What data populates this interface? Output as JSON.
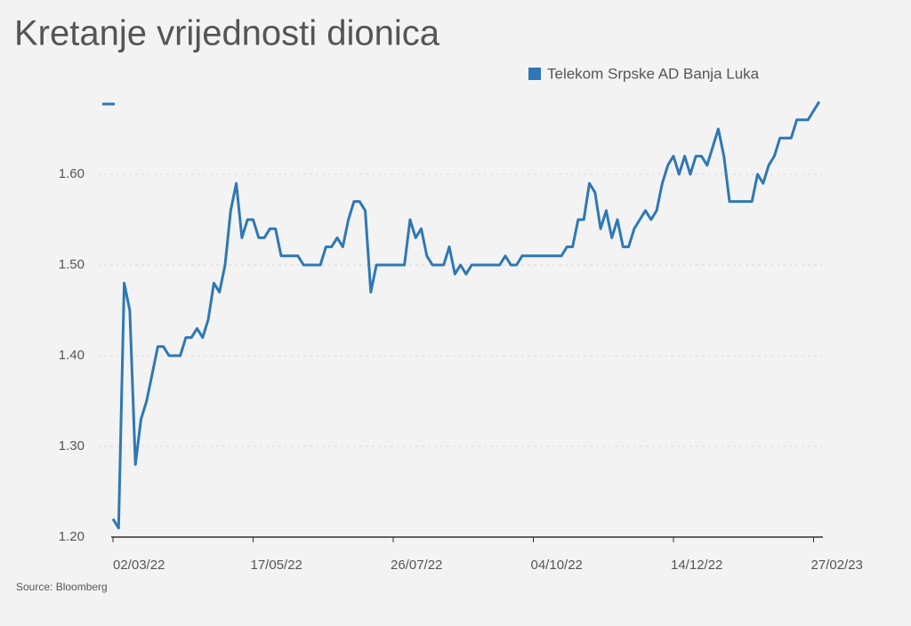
{
  "chart_data": {
    "type": "line",
    "title": "Kretanje vrijednosti dionica",
    "source": "Source: Bloomberg",
    "categories": [
      "02/03/22",
      null,
      null,
      null,
      null,
      null,
      null,
      null,
      null,
      null,
      null,
      null,
      null,
      null,
      null,
      null,
      null,
      null,
      null,
      null,
      null,
      null,
      null,
      null,
      null,
      "17/05/22",
      null,
      null,
      null,
      null,
      null,
      null,
      null,
      null,
      null,
      null,
      null,
      null,
      null,
      null,
      null,
      null,
      null,
      null,
      null,
      null,
      null,
      null,
      null,
      null,
      "26/07/22",
      null,
      null,
      null,
      null,
      null,
      null,
      null,
      null,
      null,
      null,
      null,
      null,
      null,
      null,
      null,
      null,
      null,
      null,
      null,
      null,
      null,
      null,
      null,
      null,
      "04/10/22",
      null,
      null,
      null,
      null,
      null,
      null,
      null,
      null,
      null,
      null,
      null,
      null,
      null,
      null,
      null,
      null,
      null,
      null,
      null,
      null,
      null,
      null,
      null,
      null,
      "14/12/22",
      null,
      null,
      null,
      null,
      null,
      null,
      null,
      null,
      null,
      null,
      null,
      null,
      null,
      null,
      null,
      null,
      null,
      null,
      null,
      null,
      null,
      null,
      null,
      null,
      "27/02/23",
      null
    ],
    "series": [
      {
        "name": "Telekom Srpske AD Banja Luka",
        "color": "#2e78b5",
        "values": [
          1.22,
          1.21,
          1.48,
          1.45,
          1.28,
          1.33,
          1.35,
          1.38,
          1.41,
          1.41,
          1.4,
          1.4,
          1.4,
          1.42,
          1.42,
          1.43,
          1.42,
          1.44,
          1.48,
          1.47,
          1.5,
          1.56,
          1.59,
          1.53,
          1.55,
          1.55,
          1.53,
          1.53,
          1.54,
          1.54,
          1.51,
          1.51,
          1.51,
          1.51,
          1.5,
          1.5,
          1.5,
          1.5,
          1.52,
          1.52,
          1.53,
          1.52,
          1.55,
          1.57,
          1.57,
          1.56,
          1.47,
          1.5,
          1.5,
          1.5,
          1.5,
          1.5,
          1.5,
          1.55,
          1.53,
          1.54,
          1.51,
          1.5,
          1.5,
          1.5,
          1.52,
          1.49,
          1.5,
          1.49,
          1.5,
          1.5,
          1.5,
          1.5,
          1.5,
          1.5,
          1.51,
          1.5,
          1.5,
          1.51,
          1.51,
          1.51,
          1.51,
          1.51,
          1.51,
          1.51,
          1.51,
          1.52,
          1.52,
          1.55,
          1.55,
          1.59,
          1.58,
          1.54,
          1.56,
          1.53,
          1.55,
          1.52,
          1.52,
          1.54,
          1.55,
          1.56,
          1.55,
          1.56,
          1.59,
          1.61,
          1.62,
          1.6,
          1.62,
          1.6,
          1.62,
          1.62,
          1.61,
          1.63,
          1.65,
          1.62,
          1.57,
          1.57,
          1.57,
          1.57,
          1.57,
          1.6,
          1.59,
          1.61,
          1.62,
          1.64,
          1.64,
          1.64,
          1.66,
          1.66,
          1.66,
          1.67,
          1.68
        ]
      }
    ],
    "ylim": [
      1.2,
      1.68
    ],
    "yticks": [
      {
        "value": 1.2,
        "label": "1.20"
      },
      {
        "value": 1.3,
        "label": "1.30"
      },
      {
        "value": 1.4,
        "label": "1.40"
      },
      {
        "value": 1.5,
        "label": "1.50"
      },
      {
        "value": 1.6,
        "label": "1.60"
      }
    ],
    "grid": true
  }
}
